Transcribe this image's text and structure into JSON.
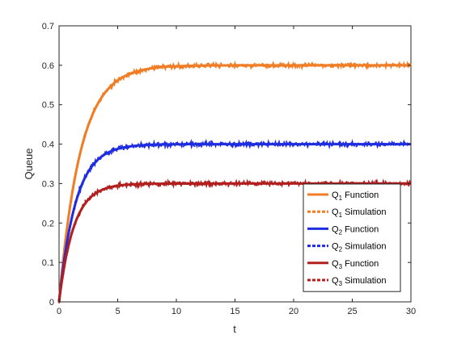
{
  "chart_data": {
    "type": "line",
    "title": "",
    "xlabel": "t",
    "ylabel": "Queue",
    "xlim": [
      0,
      30
    ],
    "ylim": [
      0,
      0.7
    ],
    "xticks": [
      "0",
      "5",
      "10",
      "15",
      "20",
      "25",
      "30"
    ],
    "yticks": [
      "0",
      "0.1",
      "0.2",
      "0.3",
      "0.4",
      "0.5",
      "0.6",
      "0.7"
    ],
    "grid": false,
    "legend_position": "bottom-right",
    "series": [
      {
        "name": "Q",
        "subscript": "1",
        "suffix": " Function",
        "color": "#f07c25",
        "style": "solid",
        "steady_state": 0.6,
        "rate": 0.55
      },
      {
        "name": "Q",
        "subscript": "1",
        "suffix": " Simulation",
        "color": "#f07c25",
        "style": "dotted",
        "steady_state": 0.6,
        "rate": 0.55
      },
      {
        "name": "Q",
        "subscript": "2",
        "suffix": " Function",
        "color": "#1f2de0",
        "style": "solid",
        "steady_state": 0.4,
        "rate": 0.7
      },
      {
        "name": "Q",
        "subscript": "2",
        "suffix": " Simulation",
        "color": "#1f2de0",
        "style": "dotted",
        "steady_state": 0.4,
        "rate": 0.7
      },
      {
        "name": "Q",
        "subscript": "3",
        "suffix": " Function",
        "color": "#b21f1f",
        "style": "solid",
        "steady_state": 0.3,
        "rate": 0.8
      },
      {
        "name": "Q",
        "subscript": "3",
        "suffix": " Simulation",
        "color": "#b21f1f",
        "style": "dotted",
        "steady_state": 0.3,
        "rate": 0.8
      }
    ]
  }
}
